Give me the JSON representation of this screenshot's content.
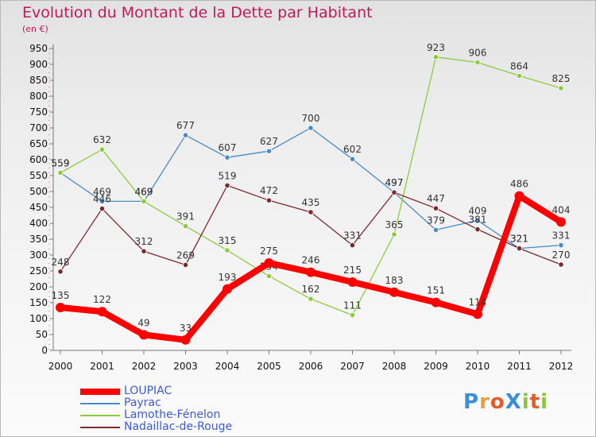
{
  "header": {
    "title": "Evolution du Montant de la Dette par Habitant",
    "unit": "(en €)"
  },
  "logo": {
    "text": "ProXiti",
    "colors": [
      "#3a8fd8",
      "#e8a23c",
      "#e65a2a",
      "#3a8fd8",
      "#8cc63f",
      "#e65a2a",
      "#8cc63f"
    ]
  },
  "chart_data": {
    "type": "line",
    "categories": [
      "2000",
      "2001",
      "2002",
      "2003",
      "2004",
      "2005",
      "2006",
      "2007",
      "2008",
      "2009",
      "2010",
      "2011",
      "2012"
    ],
    "ylim": [
      0,
      950
    ],
    "yticks": [
      0,
      50,
      100,
      150,
      200,
      250,
      300,
      350,
      400,
      450,
      500,
      550,
      600,
      650,
      700,
      750,
      800,
      850,
      900,
      950
    ],
    "grid": false,
    "legend_position": "bottom-left",
    "series": [
      {
        "name": "LOUPIAC",
        "color": "#ff0000",
        "values": [
          135,
          122,
          49,
          33,
          193,
          275,
          246,
          215,
          183,
          151,
          114,
          486,
          404
        ]
      },
      {
        "name": "Payrac",
        "color": "#4b8ac4",
        "values": [
          559,
          469,
          469,
          677,
          607,
          627,
          700,
          602,
          497,
          379,
          409,
          321,
          331
        ]
      },
      {
        "name": "Lamothe-Fénelon",
        "color": "#8ccc3c",
        "values": [
          559,
          632,
          469,
          391,
          315,
          234,
          162,
          111,
          365,
          923,
          906,
          864,
          825
        ]
      },
      {
        "name": "Nadaillac-de-Rouge",
        "color": "#7a2a2a",
        "values": [
          248,
          446,
          312,
          269,
          519,
          472,
          435,
          331,
          497,
          447,
          381,
          321,
          270
        ]
      }
    ]
  }
}
